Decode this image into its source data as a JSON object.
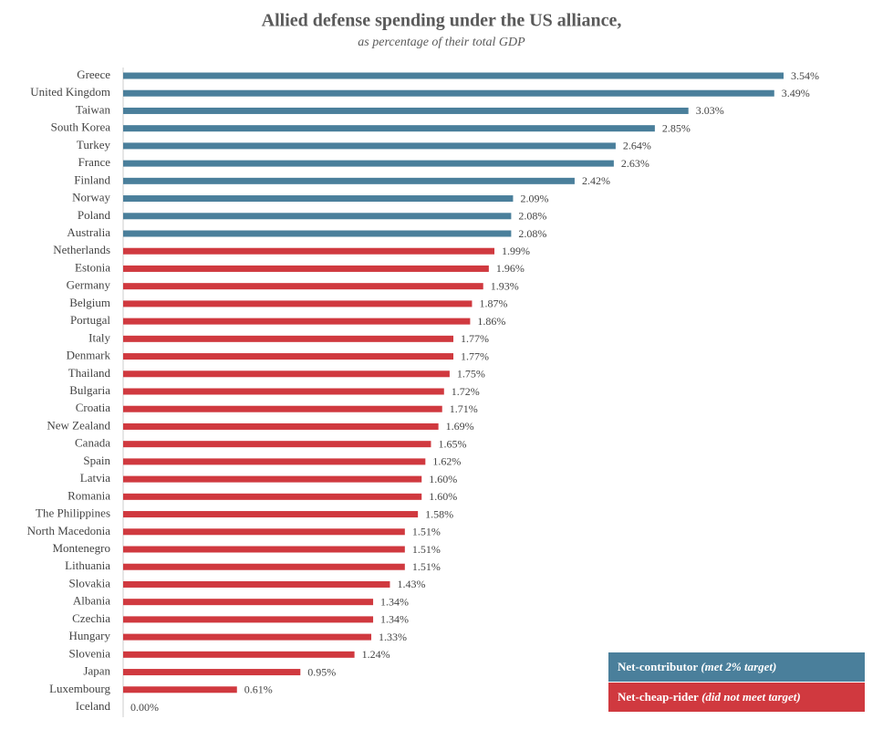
{
  "chart_data": {
    "type": "hbar",
    "title": "Allied defense spending under the US alliance,",
    "subtitle": "as percentage of their total GDP",
    "categories": [
      "Greece",
      "United Kingdom",
      "Taiwan",
      "South Korea",
      "Turkey",
      "France",
      "Finland",
      "Norway",
      "Poland",
      "Australia",
      "Netherlands",
      "Estonia",
      "Germany",
      "Belgium",
      "Portugal",
      "Italy",
      "Denmark",
      "Thailand",
      "Bulgaria",
      "Croatia",
      "New Zealand",
      "Canada",
      "Spain",
      "Latvia",
      "Romania",
      "The Philippines",
      "North Macedonia",
      "Montenegro",
      "Lithuania",
      "Slovakia",
      "Albania",
      "Czechia",
      "Hungary",
      "Slovenia",
      "Japan",
      "Luxembourg",
      "Iceland"
    ],
    "series": [
      {
        "name": "Net-contributor",
        "note": "(met 2% target)",
        "color": "#4a7f9b",
        "values": [
          3.54,
          3.49,
          3.03,
          2.85,
          2.64,
          2.63,
          2.42,
          2.09,
          2.08,
          2.08,
          null,
          null,
          null,
          null,
          null,
          null,
          null,
          null,
          null,
          null,
          null,
          null,
          null,
          null,
          null,
          null,
          null,
          null,
          null,
          null,
          null,
          null,
          null,
          null,
          null,
          null,
          null
        ],
        "value_labels": [
          "3.54%",
          "3.49%",
          "3.03%",
          "2.85%",
          "2.64%",
          "2.63%",
          "2.42%",
          "2.09%",
          "2.08%",
          "2.08%",
          null,
          null,
          null,
          null,
          null,
          null,
          null,
          null,
          null,
          null,
          null,
          null,
          null,
          null,
          null,
          null,
          null,
          null,
          null,
          null,
          null,
          null,
          null,
          null,
          null,
          null,
          null
        ]
      },
      {
        "name": "Net-cheap-rider",
        "note": "(did not meet target)",
        "color": "#d0393f",
        "values": [
          null,
          null,
          null,
          null,
          null,
          null,
          null,
          null,
          null,
          null,
          1.99,
          1.96,
          1.93,
          1.87,
          1.86,
          1.77,
          1.77,
          1.75,
          1.72,
          1.71,
          1.69,
          1.65,
          1.62,
          1.6,
          1.6,
          1.58,
          1.51,
          1.51,
          1.51,
          1.43,
          1.34,
          1.34,
          1.33,
          1.24,
          0.95,
          0.61,
          0
        ],
        "value_labels": [
          null,
          null,
          null,
          null,
          null,
          null,
          null,
          null,
          null,
          null,
          "1.99%",
          "1.96%",
          "1.93%",
          "1.87%",
          "1.86%",
          "1.77%",
          "1.77%",
          "1.75%",
          "1.72%",
          "1.71%",
          "1.69%",
          "1.65%",
          "1.62%",
          "1.60%",
          "1.60%",
          "1.58%",
          "1.51%",
          "1.51%",
          "1.51%",
          "1.43%",
          "1.34%",
          "1.34%",
          "1.33%",
          "1.24%",
          "0.95%",
          "0.61%",
          "0.00%"
        ]
      }
    ]
  }
}
